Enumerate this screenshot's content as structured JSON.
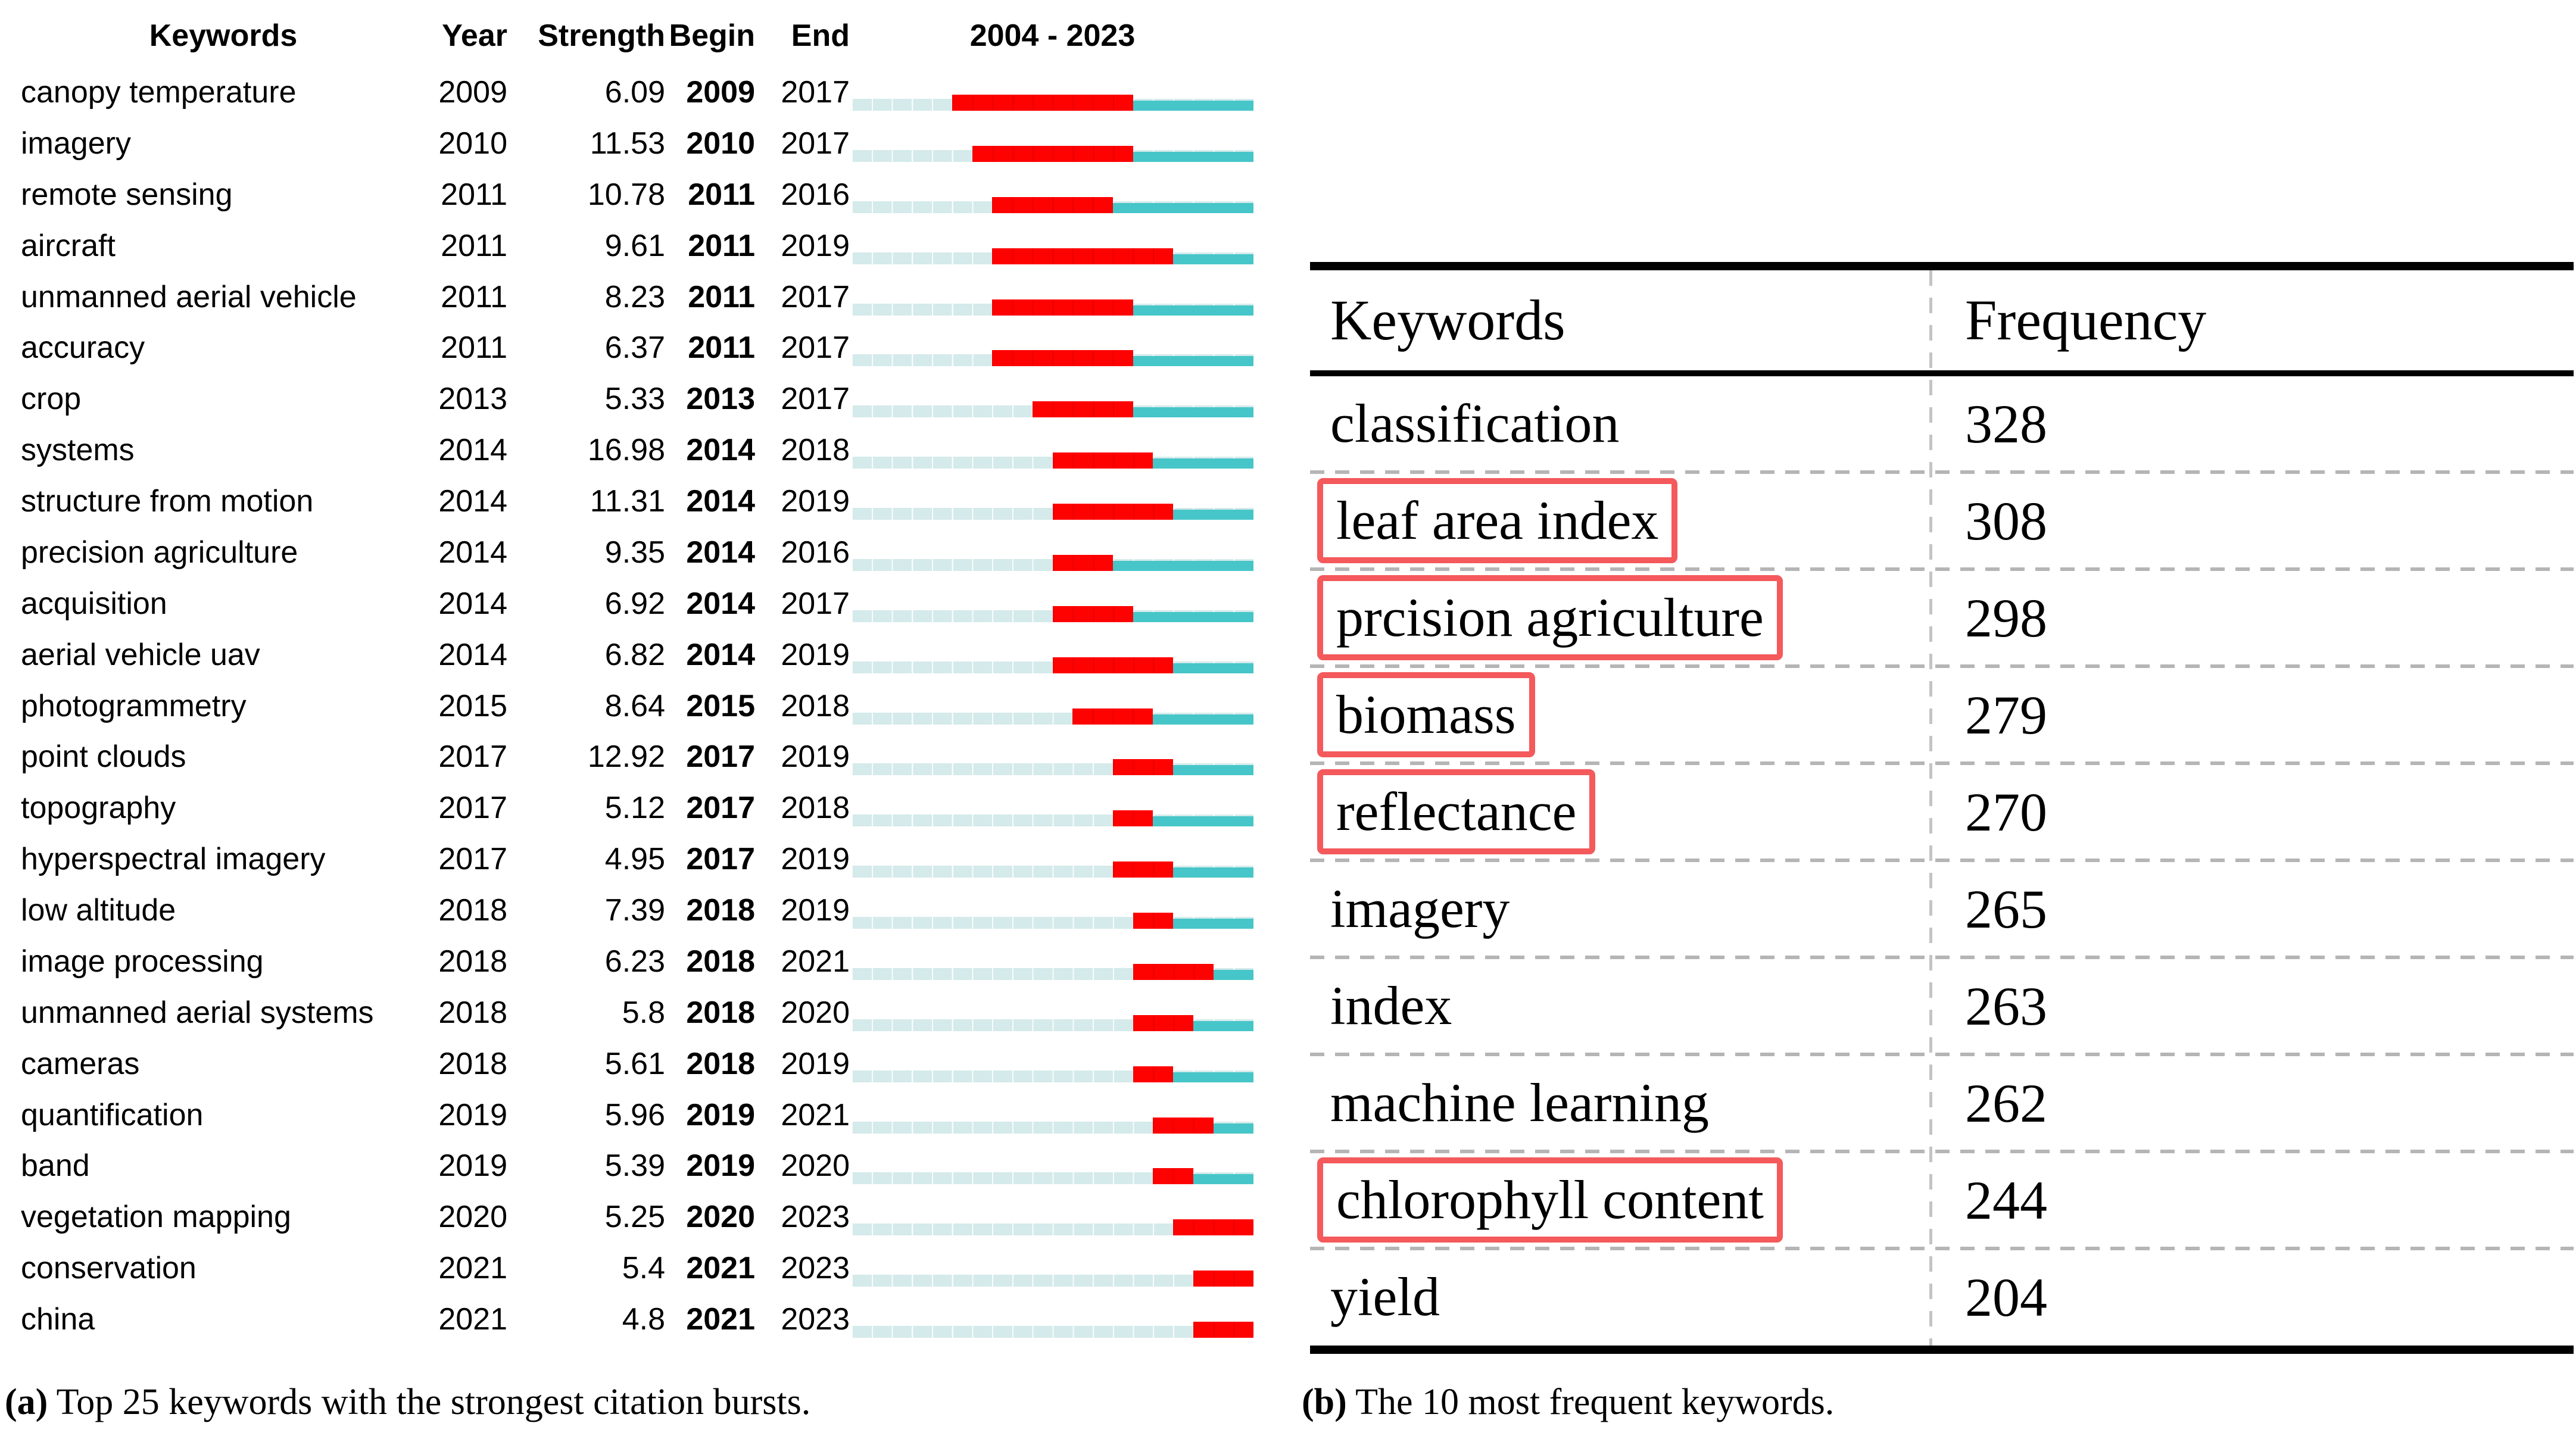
{
  "panel_a": {
    "header": {
      "keywords": "Keywords",
      "year": "Year",
      "strength": "Strength",
      "begin": "Begin",
      "end": "End",
      "range": "2004 - 2023"
    },
    "timeline": {
      "start_year": 2004,
      "end_year": 2023
    },
    "rows": [
      {
        "keyword": "canopy temperature",
        "year": "2009",
        "strength": "6.09",
        "begin": 2009,
        "end": 2017
      },
      {
        "keyword": "imagery",
        "year": "2010",
        "strength": "11.53",
        "begin": 2010,
        "end": 2017
      },
      {
        "keyword": "remote sensing",
        "year": "2011",
        "strength": "10.78",
        "begin": 2011,
        "end": 2016
      },
      {
        "keyword": "aircraft",
        "year": "2011",
        "strength": "9.61",
        "begin": 2011,
        "end": 2019
      },
      {
        "keyword": "unmanned aerial vehicle",
        "year": "2011",
        "strength": "8.23",
        "begin": 2011,
        "end": 2017
      },
      {
        "keyword": "accuracy",
        "year": "2011",
        "strength": "6.37",
        "begin": 2011,
        "end": 2017
      },
      {
        "keyword": "crop",
        "year": "2013",
        "strength": "5.33",
        "begin": 2013,
        "end": 2017
      },
      {
        "keyword": "systems",
        "year": "2014",
        "strength": "16.98",
        "begin": 2014,
        "end": 2018
      },
      {
        "keyword": "structure from motion",
        "year": "2014",
        "strength": "11.31",
        "begin": 2014,
        "end": 2019
      },
      {
        "keyword": "precision agriculture",
        "year": "2014",
        "strength": "9.35",
        "begin": 2014,
        "end": 2016
      },
      {
        "keyword": "acquisition",
        "year": "2014",
        "strength": "6.92",
        "begin": 2014,
        "end": 2017
      },
      {
        "keyword": "aerial vehicle uav",
        "year": "2014",
        "strength": "6.82",
        "begin": 2014,
        "end": 2019
      },
      {
        "keyword": "photogrammetry",
        "year": "2015",
        "strength": "8.64",
        "begin": 2015,
        "end": 2018
      },
      {
        "keyword": "point clouds",
        "year": "2017",
        "strength": "12.92",
        "begin": 2017,
        "end": 2019
      },
      {
        "keyword": "topography",
        "year": "2017",
        "strength": "5.12",
        "begin": 2017,
        "end": 2018
      },
      {
        "keyword": "hyperspectral imagery",
        "year": "2017",
        "strength": "4.95",
        "begin": 2017,
        "end": 2019
      },
      {
        "keyword": "low altitude",
        "year": "2018",
        "strength": "7.39",
        "begin": 2018,
        "end": 2019
      },
      {
        "keyword": "image processing",
        "year": "2018",
        "strength": "6.23",
        "begin": 2018,
        "end": 2021
      },
      {
        "keyword": "unmanned aerial systems",
        "year": "2018",
        "strength": "5.8",
        "begin": 2018,
        "end": 2020
      },
      {
        "keyword": "cameras",
        "year": "2018",
        "strength": "5.61",
        "begin": 2018,
        "end": 2019
      },
      {
        "keyword": "quantification",
        "year": "2019",
        "strength": "5.96",
        "begin": 2019,
        "end": 2021
      },
      {
        "keyword": "band",
        "year": "2019",
        "strength": "5.39",
        "begin": 2019,
        "end": 2020
      },
      {
        "keyword": "vegetation mapping",
        "year": "2020",
        "strength": "5.25",
        "begin": 2020,
        "end": 2023
      },
      {
        "keyword": "conservation",
        "year": "2021",
        "strength": "5.4",
        "begin": 2021,
        "end": 2023
      },
      {
        "keyword": "china",
        "year": "2021",
        "strength": "4.8",
        "begin": 2021,
        "end": 2023
      }
    ],
    "caption": {
      "label": "(a)",
      "text": " Top 25 keywords with the strongest citation bursts."
    },
    "colors": {
      "burst": "#fe0101",
      "post_burst": "#46c6c9",
      "pre_burst": "#d5eaea"
    }
  },
  "panel_b": {
    "header": {
      "keywords": "Keywords",
      "frequency": "Frequency"
    },
    "rows": [
      {
        "keyword": "classification",
        "frequency": "328",
        "boxed": false
      },
      {
        "keyword": "leaf area index",
        "frequency": "308",
        "boxed": true
      },
      {
        "keyword": "prcision agriculture",
        "frequency": "298",
        "boxed": true
      },
      {
        "keyword": "biomass",
        "frequency": "279",
        "boxed": true
      },
      {
        "keyword": "reflectance",
        "frequency": "270",
        "boxed": true
      },
      {
        "keyword": "imagery",
        "frequency": "265",
        "boxed": false
      },
      {
        "keyword": "index",
        "frequency": "263",
        "boxed": false
      },
      {
        "keyword": "machine learning",
        "frequency": "262",
        "boxed": false
      },
      {
        "keyword": "chlorophyll content",
        "frequency": "244",
        "boxed": true
      },
      {
        "keyword": "yield",
        "frequency": "204",
        "boxed": false
      }
    ],
    "caption": {
      "label": "(b)",
      "text": " The 10 most frequent keywords."
    },
    "colors": {
      "highlight_box": "#f4595b"
    }
  },
  "chart_data": {
    "type": "table",
    "title": "2004 - 2023",
    "series": [
      {
        "name": "citation_bursts",
        "columns": [
          "Keywords",
          "Year",
          "Strength",
          "Begin",
          "End"
        ],
        "x_range": [
          2004,
          2023
        ]
      }
    ]
  }
}
